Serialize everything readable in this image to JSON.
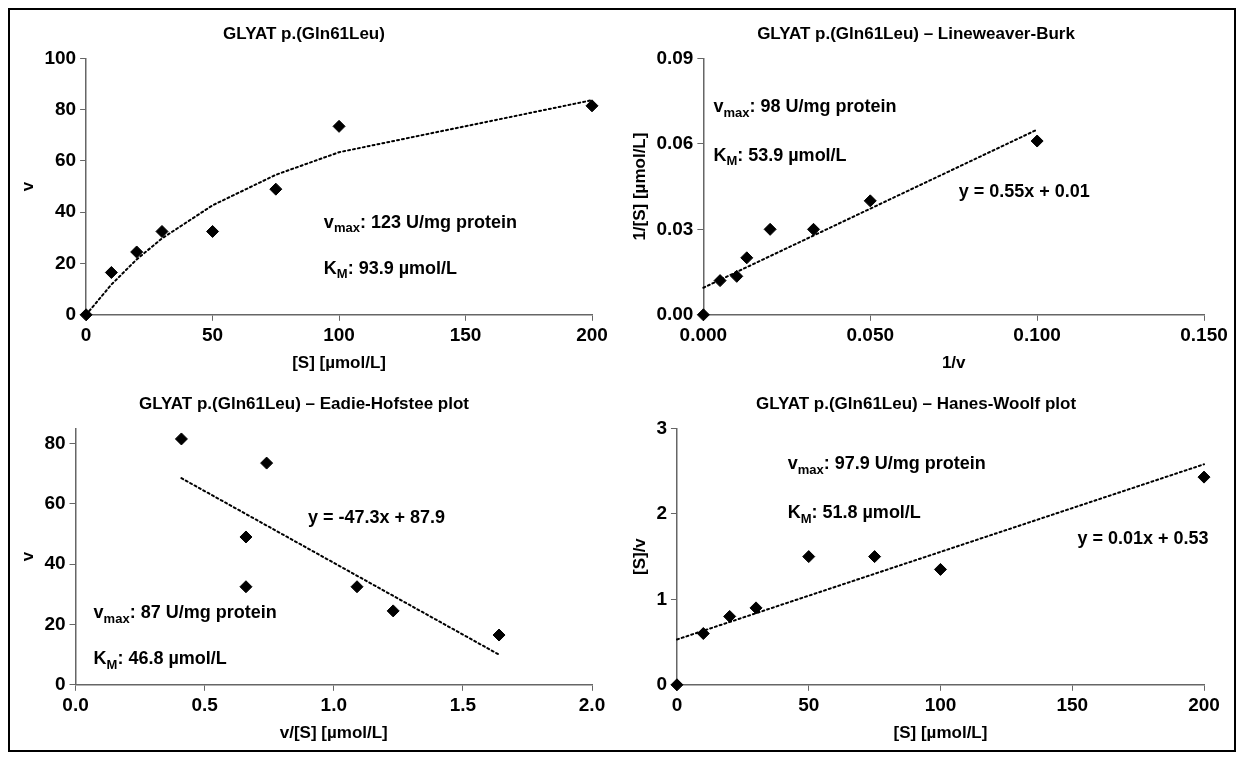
{
  "chart_data": [
    {
      "type": "scatter",
      "title": "GLYAT p.(Gln61Leu)",
      "xlabel": "[S] [µmol/L]",
      "ylabel": "v",
      "xlim": [
        0,
        200
      ],
      "xticks": [
        0,
        50,
        100,
        150,
        200
      ],
      "ylim": [
        0,
        100
      ],
      "yticks": [
        0,
        20,
        40,
        60,
        80,
        100
      ],
      "grid": false,
      "legend": false,
      "marker": "diamond",
      "color": "#000000",
      "series": [
        {
          "type": "scatter",
          "x": [
            0,
            10,
            20,
            30,
            50,
            75,
            100,
            200
          ],
          "values": [
            0,
            16.5,
            24.5,
            32.5,
            32.5,
            49,
            73.5,
            81.5
          ]
        },
        {
          "type": "line",
          "marker": "none",
          "line_style": "dotted",
          "x": [
            0,
            10,
            20,
            30,
            50,
            75,
            100,
            200
          ],
          "values": [
            0,
            11.8,
            21.6,
            29.8,
            42.7,
            54.6,
            63.4,
            83.7
          ]
        }
      ],
      "annotations": [
        "v$_{max}$: 123 U/mg protein",
        "K$_{M}$: 93.9 µmol/L"
      ]
    },
    {
      "type": "scatter",
      "title": "GLYAT p.(Gln61Leu) – Lineweaver-Burk",
      "xlabel": "1/v",
      "ylabel": "1/[S] [µmol/L]",
      "xlim": [
        0,
        0.15
      ],
      "xticks": [
        {
          "value": 0,
          "label": "0.000"
        },
        {
          "value": 0.05,
          "label": "0.050"
        },
        {
          "value": 0.1,
          "label": "0.100"
        },
        {
          "value": 0.15,
          "label": "0.150"
        }
      ],
      "ylim": [
        0,
        0.09
      ],
      "yticks": [
        {
          "value": 0,
          "label": "0.00"
        },
        {
          "value": 0.03,
          "label": "0.03"
        },
        {
          "value": 0.06,
          "label": "0.06"
        },
        {
          "value": 0.09,
          "label": "0.09"
        }
      ],
      "grid": false,
      "legend": false,
      "marker": "diamond",
      "color": "#000000",
      "series": [
        {
          "type": "scatter",
          "x": [
            0,
            0.005,
            0.01,
            0.013,
            0.02,
            0.033,
            0.05,
            0.1
          ],
          "values": [
            0,
            0.012,
            0.0135,
            0.02,
            0.03,
            0.03,
            0.04,
            0.061
          ]
        },
        {
          "type": "line",
          "marker": "none",
          "line_style": "dotted",
          "x": [
            0,
            0.1
          ],
          "values": [
            0.0095,
            0.065
          ]
        }
      ],
      "annotations": [
        "v$_{max}$: 98 U/mg protein",
        "K$_{M}$: 53.9 µmol/L",
        "y = 0.55x + 0.01"
      ]
    },
    {
      "type": "scatter",
      "title": "GLYAT p.(Gln61Leu) – Eadie-Hofstee plot",
      "xlabel": "v/[S] [µmol/L]",
      "ylabel": "v",
      "xlim": [
        0,
        2
      ],
      "xticks": [
        {
          "value": 0,
          "label": "0.0"
        },
        {
          "value": 0.5,
          "label": "0.5"
        },
        {
          "value": 1,
          "label": "1.0"
        },
        {
          "value": 1.5,
          "label": "1.5"
        },
        {
          "value": 2,
          "label": "2.0"
        }
      ],
      "ylim": [
        0,
        85
      ],
      "yticks": [
        0,
        20,
        40,
        60,
        80
      ],
      "grid": false,
      "legend": false,
      "marker": "diamond",
      "color": "#000000",
      "series": [
        {
          "type": "scatter",
          "x": [
            0.41,
            0.74,
            0.66,
            0.66,
            1.09,
            1.23,
            1.64
          ],
          "values": [
            81.5,
            73.5,
            49,
            32.5,
            32.5,
            24.5,
            16.5
          ]
        },
        {
          "type": "line",
          "marker": "none",
          "line_style": "dotted",
          "x": [
            0.41,
            1.64
          ],
          "values": [
            68.5,
            10
          ]
        }
      ],
      "annotations": [
        "y = -47.3x + 87.9",
        "v$_{max}$: 87 U/mg protein",
        "K$_{M}$: 46.8 µmol/L"
      ]
    },
    {
      "type": "scatter",
      "title": "GLYAT p.(Gln61Leu) – Hanes-Woolf plot",
      "xlabel": "[S] [µmol/L]",
      "ylabel": "[S]/v",
      "xlim": [
        0,
        200
      ],
      "xticks": [
        0,
        50,
        100,
        150,
        200
      ],
      "ylim": [
        0,
        3
      ],
      "yticks": [
        0,
        1,
        2,
        3
      ],
      "grid": false,
      "legend": false,
      "marker": "diamond",
      "color": "#000000",
      "series": [
        {
          "type": "scatter",
          "x": [
            0,
            10,
            20,
            30,
            50,
            75,
            100,
            200
          ],
          "values": [
            0,
            0.6,
            0.8,
            0.9,
            1.5,
            1.5,
            1.35,
            2.43
          ]
        },
        {
          "type": "line",
          "marker": "none",
          "line_style": "dotted",
          "x": [
            0,
            200
          ],
          "values": [
            0.53,
            2.58
          ]
        }
      ],
      "annotations": [
        "v$_{max}$: 97.9 U/mg protein",
        "K$_{M}$: 51.8 µmol/L",
        "y = 0.01x + 0.53"
      ]
    }
  ]
}
